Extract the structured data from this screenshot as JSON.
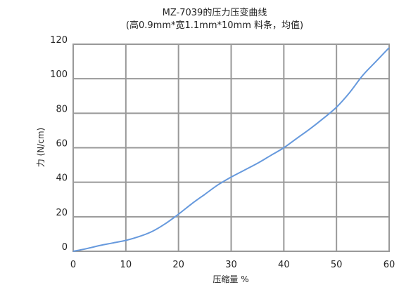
{
  "chart_data": {
    "type": "line",
    "title": "MZ-7039的压力压变曲线",
    "subtitle": "(高0.9mm*宽1.1mm*10mm 料条，均值)",
    "xlabel": "压缩量 %",
    "ylabel": "力 (N/cm)",
    "xlim": [
      0,
      60
    ],
    "ylim": [
      0,
      120
    ],
    "x_ticks": [
      "0",
      "10",
      "20",
      "30",
      "40",
      "50",
      "60"
    ],
    "y_ticks": [
      "0",
      "20",
      "40",
      "60",
      "80",
      "100",
      "120"
    ],
    "grid": true,
    "legend": "none",
    "series": [
      {
        "color": "#6699dd",
        "x": [
          0,
          2.5,
          5,
          7.5,
          10,
          12.5,
          15,
          17.5,
          20,
          22.5,
          25,
          27.5,
          30,
          32.5,
          35,
          37.5,
          40,
          42.5,
          45,
          47.5,
          50,
          52.5,
          55,
          57.5,
          60
        ],
        "y": [
          0,
          1.5,
          3.3,
          4.8,
          6.3,
          8.5,
          11.5,
          16.0,
          21.5,
          27.5,
          33.0,
          38.5,
          43.0,
          47.0,
          51.0,
          55.5,
          60.0,
          65.5,
          71.0,
          77.0,
          83.5,
          92.0,
          102.0,
          110.0,
          118.0
        ]
      }
    ]
  }
}
